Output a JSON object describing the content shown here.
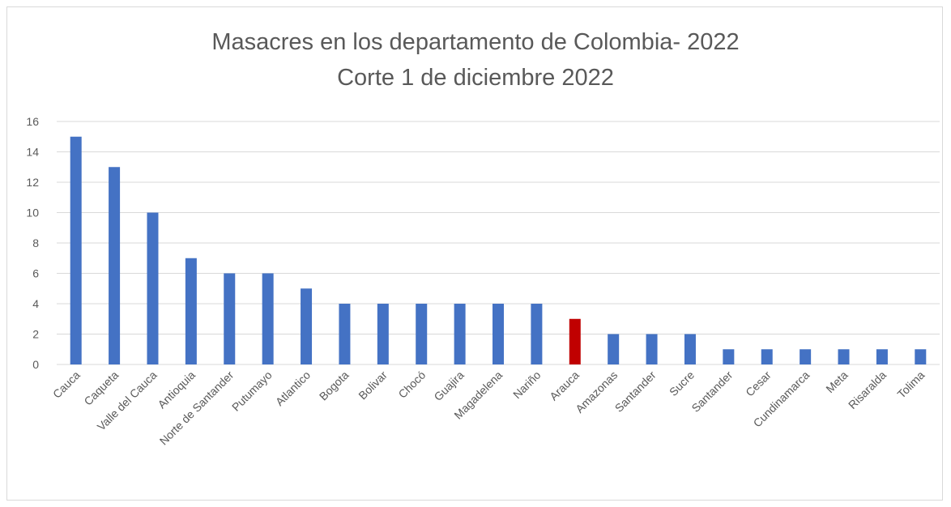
{
  "chart_data": {
    "type": "bar",
    "title": "Masacres en los departamento de Colombia- 2022",
    "subtitle": "Corte 1 de diciembre 2022",
    "xlabel": "",
    "ylabel": "",
    "ylim": [
      0,
      16
    ],
    "yticks": [
      0,
      2,
      4,
      6,
      8,
      10,
      12,
      14,
      16
    ],
    "grid": true,
    "legend": "none",
    "categories": [
      "Cauca",
      "Caqueta",
      "Valle del Cauca",
      "Antioquia",
      "Norte de Santander",
      "Putumayo",
      "Atlantico",
      "Bogota",
      "Bolivar",
      "Chocó",
      "Guajira",
      "Magadelena",
      "Nariño",
      "Arauca",
      "Amazonas",
      "Santander",
      "Sucre",
      "Santander",
      "Cesar",
      "Cundinamarca",
      "Meta",
      "Risaralda",
      "Tolima"
    ],
    "values": [
      15,
      13,
      10,
      7,
      6,
      6,
      5,
      4,
      4,
      4,
      4,
      4,
      4,
      3,
      2,
      2,
      2,
      1,
      1,
      1,
      1,
      1,
      1
    ],
    "colors": {
      "bar": "#4472c4",
      "highlight": "#c00000",
      "gridline": "#d9d9d9",
      "text": "#595959"
    },
    "highlight_index": 13
  }
}
